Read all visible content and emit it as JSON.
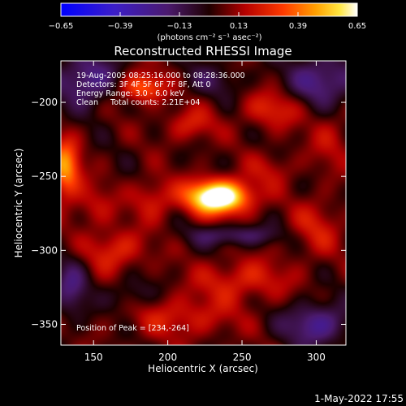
{
  "chart_data": {
    "type": "heatmap",
    "title": "Reconstructed RHESSI Image",
    "xlabel": "Heliocentric X (arcsec)",
    "ylabel": "Heliocentric Y (arcsec)",
    "xlim": [
      128,
      320
    ],
    "ylim": [
      -364,
      -172
    ],
    "xticks": [
      150,
      200,
      250,
      300
    ],
    "yticks": [
      -200,
      -250,
      -300,
      -350
    ],
    "colorbar": {
      "range": [
        -0.65,
        0.65
      ],
      "ticks": [
        "-0.65",
        "-0.39",
        "-0.13",
        "0.13",
        "0.39",
        "0.65"
      ],
      "unit_label": "(photons cm⁻² s⁻¹ asec⁻²)"
    },
    "annotations": [
      "19-Aug-2005 08:25:16.000 to 08:28:36.000",
      "Detectors: 3F 4F 5F 6F 7F 8F, Att 0",
      "Energy Range: 3.0 - 6.0 keV",
      "Clean     Total counts: 2.21E+04"
    ],
    "peak_label": "Position of Peak = [234,-264]",
    "peak": {
      "x": 234,
      "y": -264,
      "value": 0.65
    },
    "sources": [
      {
        "x": 234,
        "y": -264,
        "amp": 0.78,
        "sx": 15,
        "sy": 8
      },
      {
        "x": 131,
        "y": -245,
        "amp": 0.42,
        "sx": 7,
        "sy": 14
      },
      {
        "x": 183,
        "y": -190,
        "amp": 0.34,
        "sx": 11,
        "sy": 7
      },
      {
        "x": 215,
        "y": -215,
        "amp": 0.18,
        "sx": 12,
        "sy": 8
      },
      {
        "x": 270,
        "y": -205,
        "amp": 0.2,
        "sx": 14,
        "sy": 9
      },
      {
        "x": 165,
        "y": -300,
        "amp": 0.22,
        "sx": 14,
        "sy": 10
      },
      {
        "x": 250,
        "y": -320,
        "amp": 0.2,
        "sx": 22,
        "sy": 10
      },
      {
        "x": 300,
        "y": -285,
        "amp": 0.16,
        "sx": 12,
        "sy": 14
      },
      {
        "x": 210,
        "y": -345,
        "amp": 0.18,
        "sx": 25,
        "sy": 10
      },
      {
        "x": 190,
        "y": -265,
        "amp": 0.18,
        "sx": 10,
        "sy": 10
      },
      {
        "x": 270,
        "y": -245,
        "amp": 0.12,
        "sx": 12,
        "sy": 8
      },
      {
        "x": 150,
        "y": -270,
        "amp": 0.14,
        "sx": 10,
        "sy": 10
      },
      {
        "x": 310,
        "y": -225,
        "amp": 0.12,
        "sx": 10,
        "sy": 15
      },
      {
        "x": 145,
        "y": -185,
        "amp": -0.3,
        "sx": 14,
        "sy": 12
      },
      {
        "x": 305,
        "y": -185,
        "amp": -0.28,
        "sx": 16,
        "sy": 12
      },
      {
        "x": 300,
        "y": -350,
        "amp": -0.3,
        "sx": 15,
        "sy": 10
      },
      {
        "x": 245,
        "y": -290,
        "amp": -0.22,
        "sx": 20,
        "sy": 5
      },
      {
        "x": 135,
        "y": -325,
        "amp": -0.22,
        "sx": 8,
        "sy": 14
      },
      {
        "x": 175,
        "y": -330,
        "amp": -0.14,
        "sx": 10,
        "sy": 8
      },
      {
        "x": 230,
        "y": -185,
        "amp": -0.12,
        "sx": 15,
        "sy": 8
      }
    ],
    "base_level": 0.04,
    "grid": false
  },
  "footer": {
    "timestamp": "1-May-2022 17:55"
  }
}
